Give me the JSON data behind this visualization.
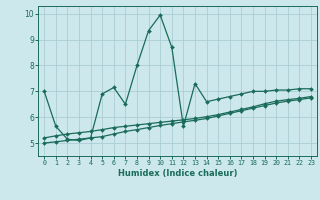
{
  "xlabel": "Humidex (Indice chaleur)",
  "ylabel": "",
  "background_color": "#cce8ec",
  "grid_color": "#aacdd4",
  "line_color": "#1a6b5a",
  "xlim": [
    -0.5,
    23.5
  ],
  "ylim": [
    4.5,
    10.3
  ],
  "yticks": [
    5,
    6,
    7,
    8,
    9,
    10
  ],
  "xticks": [
    0,
    1,
    2,
    3,
    4,
    5,
    6,
    7,
    8,
    9,
    10,
    11,
    12,
    13,
    14,
    15,
    16,
    17,
    18,
    19,
    20,
    21,
    22,
    23
  ],
  "series1_x": [
    0,
    1,
    2,
    3,
    4,
    5,
    6,
    7,
    8,
    9,
    10,
    11,
    12,
    13,
    14,
    15,
    16,
    17,
    18,
    19,
    20,
    21,
    22,
    23
  ],
  "series1_y": [
    7.0,
    5.65,
    5.15,
    5.1,
    5.2,
    6.9,
    7.15,
    6.5,
    8.0,
    9.35,
    9.95,
    8.7,
    5.65,
    7.3,
    6.6,
    6.7,
    6.8,
    6.9,
    7.0,
    7.0,
    7.05,
    7.05,
    7.1,
    7.1
  ],
  "series2_x": [
    0,
    1,
    2,
    3,
    4,
    5,
    6,
    7,
    8,
    9,
    10,
    11,
    12,
    13,
    14,
    15,
    16,
    17,
    18,
    19,
    20,
    21,
    22,
    23
  ],
  "series2_y": [
    5.0,
    5.05,
    5.1,
    5.15,
    5.2,
    5.25,
    5.35,
    5.45,
    5.52,
    5.6,
    5.68,
    5.75,
    5.82,
    5.88,
    5.95,
    6.05,
    6.15,
    6.25,
    6.35,
    6.45,
    6.55,
    6.62,
    6.68,
    6.75
  ],
  "series3_x": [
    0,
    1,
    2,
    3,
    4,
    5,
    6,
    7,
    8,
    9,
    10,
    11,
    12,
    13,
    14,
    15,
    16,
    17,
    18,
    19,
    20,
    21,
    22,
    23
  ],
  "series3_y": [
    5.2,
    5.28,
    5.35,
    5.4,
    5.45,
    5.52,
    5.6,
    5.65,
    5.7,
    5.75,
    5.8,
    5.85,
    5.9,
    5.95,
    6.02,
    6.1,
    6.2,
    6.3,
    6.4,
    6.52,
    6.62,
    6.68,
    6.73,
    6.8
  ]
}
